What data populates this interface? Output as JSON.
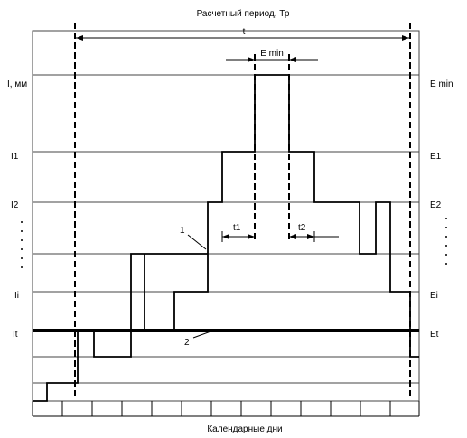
{
  "labels": {
    "title": "Расчетный период, Тр",
    "t_label": "t",
    "emin_top": "E min",
    "y_axis_left": "I, мм",
    "y_axis_right": "E min",
    "i1": "I1",
    "i2": "I2",
    "ii": "Ii",
    "it": "It",
    "e1": "E1",
    "e2": "E2",
    "ei": "Ei",
    "et": "Et",
    "t1": "t1",
    "t2": "t2",
    "curve1": "1",
    "curve2": "2",
    "x_axis": "Календарные дни"
  }
}
